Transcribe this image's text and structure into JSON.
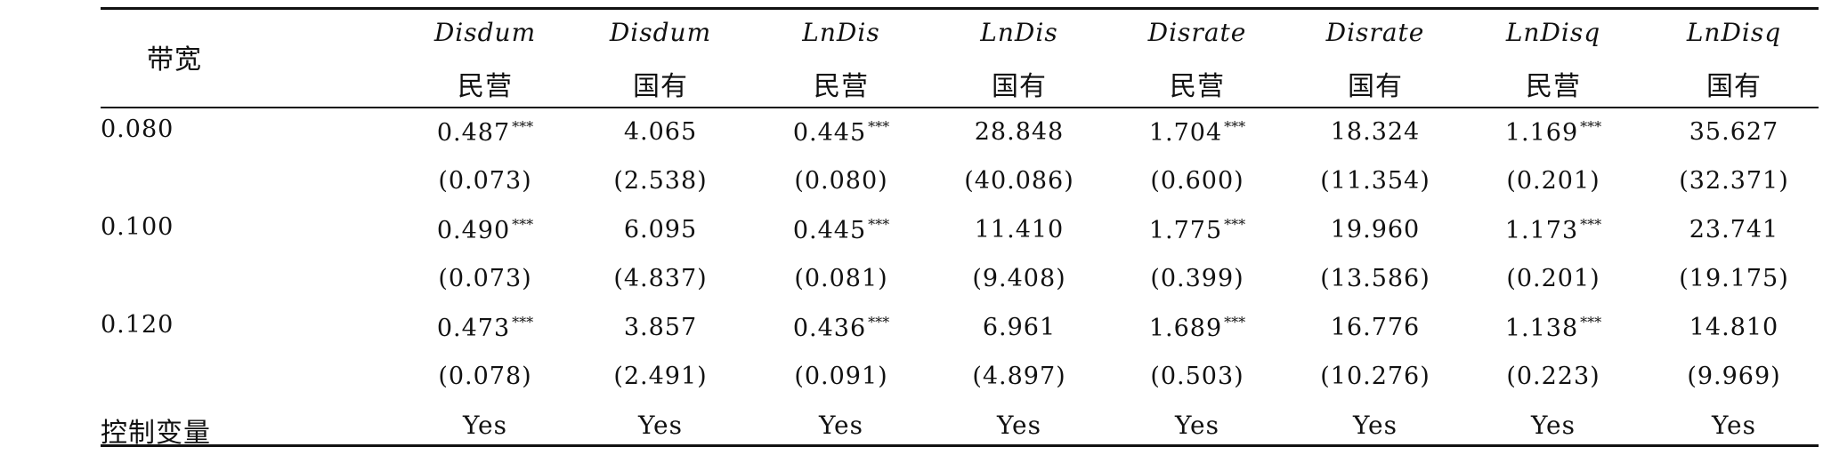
{
  "table": {
    "corner_header": "带宽",
    "columns": [
      {
        "var": "Disdum",
        "owner": "民营"
      },
      {
        "var": "Disdum",
        "owner": "国有"
      },
      {
        "var": "LnDis",
        "owner": "民营"
      },
      {
        "var": "LnDis",
        "owner": "国有"
      },
      {
        "var": "Disrate",
        "owner": "民营"
      },
      {
        "var": "Disrate",
        "owner": "国有"
      },
      {
        "var": "LnDisq",
        "owner": "民营"
      },
      {
        "var": "LnDisq",
        "owner": "国有"
      }
    ],
    "rows": [
      {
        "label": "0.080",
        "coef": [
          "0.487",
          "4.065",
          "0.445",
          "28.848",
          "1.704",
          "18.324",
          "1.169",
          "35.627"
        ],
        "stars": [
          "***",
          "",
          "***",
          "",
          "***",
          "",
          "***",
          ""
        ],
        "se": [
          "(0.073)",
          "(2.538)",
          "(0.080)",
          "(40.086)",
          "(0.600)",
          "(11.354)",
          "(0.201)",
          "(32.371)"
        ]
      },
      {
        "label": "0.100",
        "coef": [
          "0.490",
          "6.095",
          "0.445",
          "11.410",
          "1.775",
          "19.960",
          "1.173",
          "23.741"
        ],
        "stars": [
          "***",
          "",
          "***",
          "",
          "***",
          "",
          "***",
          ""
        ],
        "se": [
          "(0.073)",
          "(4.837)",
          "(0.081)",
          "(9.408)",
          "(0.399)",
          "(13.586)",
          "(0.201)",
          "(19.175)"
        ]
      },
      {
        "label": "0.120",
        "coef": [
          "0.473",
          "3.857",
          "0.436",
          "6.961",
          "1.689",
          "16.776",
          "1.138",
          "14.810"
        ],
        "stars": [
          "***",
          "",
          "***",
          "",
          "***",
          "",
          "***",
          ""
        ],
        "se": [
          "(0.078)",
          "(2.491)",
          "(0.091)",
          "(4.897)",
          "(0.503)",
          "(10.276)",
          "(0.223)",
          "(9.969)"
        ]
      }
    ],
    "control_label": "控制变量",
    "control_values": [
      "Yes",
      "Yes",
      "Yes",
      "Yes",
      "Yes",
      "Yes",
      "Yes",
      "Yes"
    ]
  }
}
